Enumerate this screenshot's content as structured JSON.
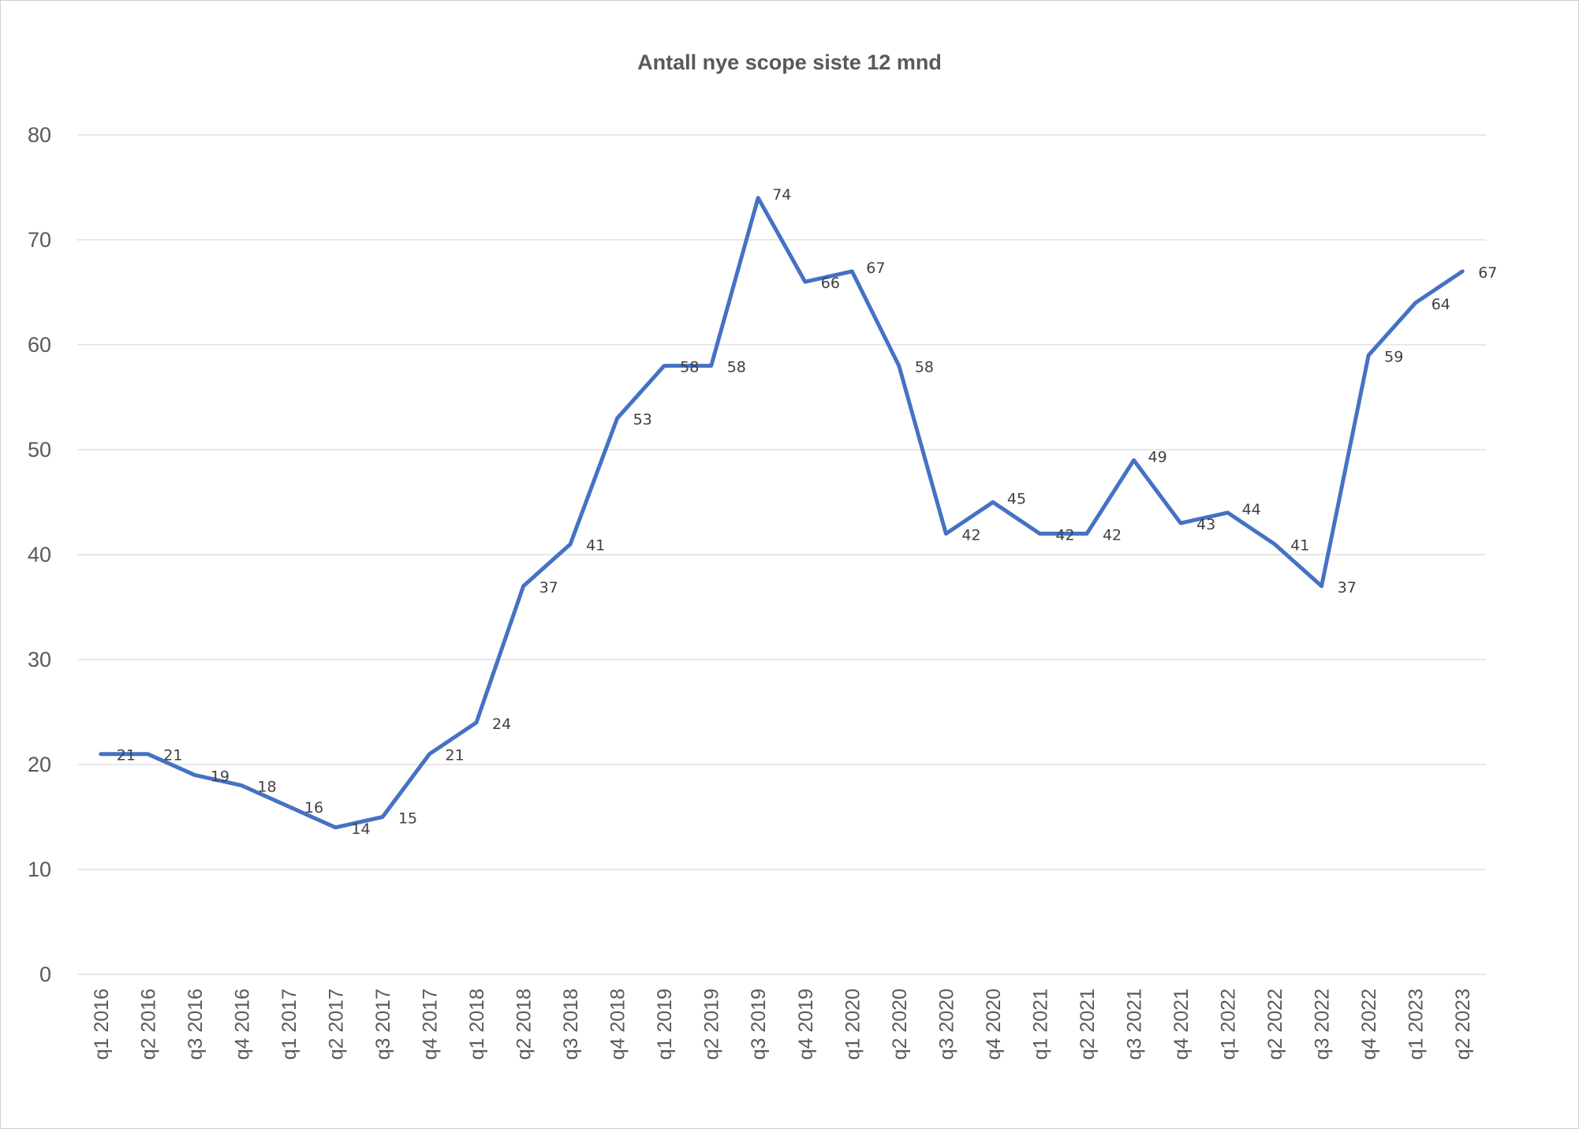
{
  "chart_data": {
    "type": "line",
    "title": "Antall nye scope siste 12 mnd",
    "xlabel": "",
    "ylabel": "",
    "ylim": [
      0,
      80
    ],
    "yticks": [
      0,
      10,
      20,
      30,
      40,
      50,
      60,
      70,
      80
    ],
    "grid": true,
    "legend": "none",
    "line_color": "#4472c4",
    "categories": [
      "q1 2016",
      "q2 2016",
      "q3 2016",
      "q4 2016",
      "q1 2017",
      "q2 2017",
      "q3 2017",
      "q4 2017",
      "q1 2018",
      "q2 2018",
      "q3 2018",
      "q4 2018",
      "q1 2019",
      "q2 2019",
      "q3 2019",
      "q4 2019",
      "q1 2020",
      "q2 2020",
      "q3 2020",
      "q4 2020",
      "q1 2021",
      "q2 2021",
      "q3 2021",
      "q4 2021",
      "q1 2022",
      "q2 2022",
      "q3 2022",
      "q4 2022",
      "q1 2023",
      "q2 2023"
    ],
    "values": [
      21,
      21,
      19,
      18,
      16,
      14,
      15,
      21,
      24,
      37,
      41,
      53,
      58,
      58,
      74,
      66,
      67,
      58,
      42,
      45,
      42,
      42,
      49,
      43,
      44,
      41,
      37,
      59,
      64,
      67
    ]
  }
}
